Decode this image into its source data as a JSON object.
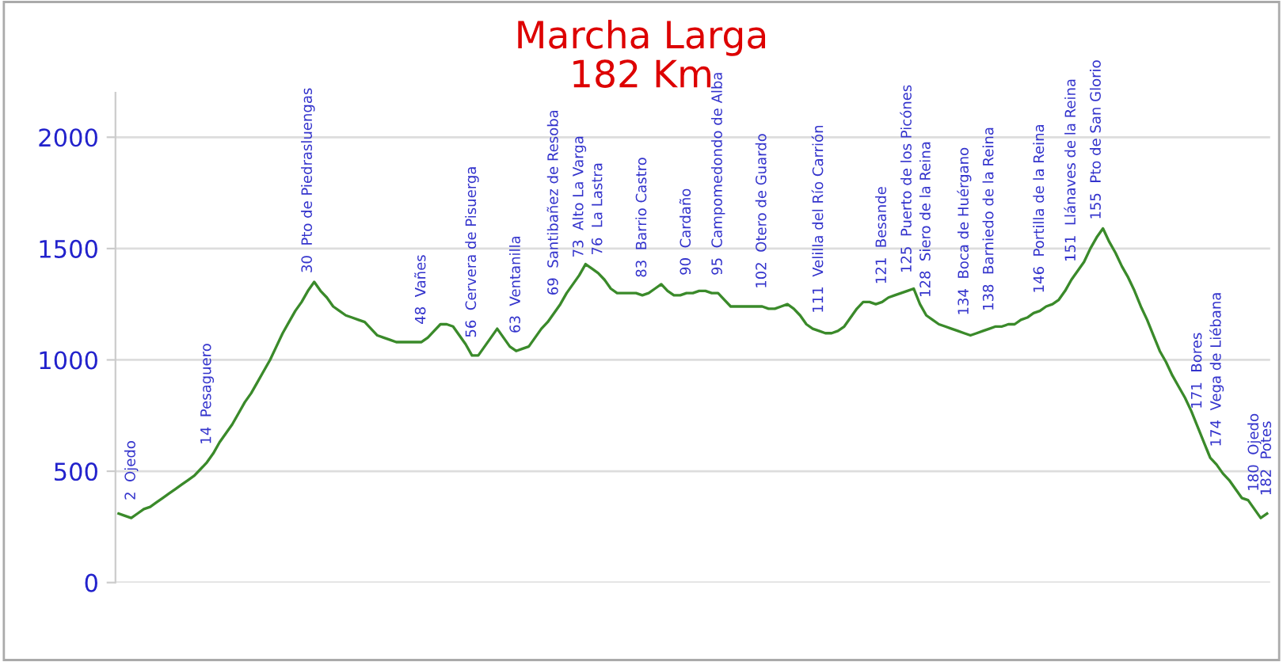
{
  "chart_data": {
    "type": "line",
    "title": "Marcha Larga\n182 Km",
    "color": "#3a8a2a",
    "categories": [
      null,
      null,
      "2  Ojedo",
      null,
      null,
      null,
      null,
      null,
      null,
      null,
      null,
      null,
      null,
      null,
      "14  Pesaguero",
      null,
      null,
      null,
      null,
      null,
      null,
      null,
      null,
      null,
      null,
      null,
      null,
      null,
      null,
      null,
      "30  Pto de Piedrasluengas",
      null,
      null,
      null,
      null,
      null,
      null,
      null,
      null,
      null,
      null,
      null,
      null,
      null,
      null,
      null,
      null,
      null,
      "48  Vañes",
      null,
      null,
      null,
      null,
      null,
      null,
      null,
      "56  Cervera de Pisuerga",
      null,
      null,
      null,
      null,
      null,
      null,
      "63  Ventanilla",
      null,
      null,
      null,
      null,
      null,
      "69  Santibañez de Resoba",
      null,
      null,
      null,
      "73  Alto La Varga",
      null,
      null,
      "76  La Lastra",
      null,
      null,
      null,
      null,
      null,
      null,
      "83  Barrio Castro",
      null,
      null,
      null,
      null,
      null,
      null,
      "90  Cardaño",
      null,
      null,
      null,
      null,
      "95  Campomedondo de Alba",
      null,
      null,
      null,
      null,
      null,
      null,
      "102  Otero de Guardo",
      null,
      null,
      null,
      null,
      null,
      null,
      null,
      null,
      "111  Velilla del Río Carrión",
      null,
      null,
      null,
      null,
      null,
      null,
      null,
      null,
      null,
      "121  Besande",
      null,
      null,
      null,
      "125  Puerto de los Picónes",
      null,
      null,
      "128  Siero de la Reina",
      null,
      null,
      null,
      null,
      null,
      "134  Boca de Huérgano",
      null,
      null,
      null,
      "138  Barniedo de la Reina",
      null,
      null,
      null,
      null,
      null,
      null,
      null,
      "146  Portilla de la Reina",
      null,
      null,
      null,
      null,
      "151  Llánaves de la Reina",
      null,
      null,
      null,
      "155  Pto de San Glorio",
      null,
      null,
      null,
      null,
      null,
      null,
      null,
      null,
      null,
      null,
      null,
      null,
      null,
      null,
      null,
      "171  Bores",
      null,
      null,
      "174  Vega de Liébana",
      null,
      null,
      null,
      null,
      null,
      "180  Ojedo",
      null,
      "182  Potes"
    ],
    "values": [
      310,
      300,
      290,
      310,
      330,
      340,
      360,
      380,
      400,
      420,
      440,
      460,
      480,
      510,
      540,
      580,
      630,
      670,
      710,
      760,
      810,
      850,
      900,
      950,
      1000,
      1060,
      1120,
      1170,
      1220,
      1260,
      1310,
      1350,
      1310,
      1280,
      1240,
      1220,
      1200,
      1190,
      1180,
      1170,
      1140,
      1110,
      1100,
      1090,
      1080,
      1080,
      1080,
      1080,
      1080,
      1100,
      1130,
      1160,
      1160,
      1150,
      1110,
      1070,
      1020,
      1020,
      1060,
      1100,
      1140,
      1100,
      1060,
      1040,
      1050,
      1060,
      1100,
      1140,
      1170,
      1210,
      1250,
      1300,
      1340,
      1380,
      1430,
      1410,
      1390,
      1360,
      1320,
      1300,
      1300,
      1300,
      1300,
      1290,
      1300,
      1320,
      1340,
      1310,
      1290,
      1290,
      1300,
      1300,
      1310,
      1310,
      1300,
      1300,
      1270,
      1240,
      1240,
      1240,
      1240,
      1240,
      1240,
      1230,
      1230,
      1240,
      1250,
      1230,
      1200,
      1160,
      1140,
      1130,
      1120,
      1120,
      1130,
      1150,
      1190,
      1230,
      1260,
      1260,
      1250,
      1260,
      1280,
      1290,
      1300,
      1310,
      1320,
      1250,
      1200,
      1180,
      1160,
      1150,
      1140,
      1130,
      1120,
      1110,
      1120,
      1130,
      1140,
      1150,
      1150,
      1160,
      1160,
      1180,
      1190,
      1210,
      1220,
      1240,
      1250,
      1270,
      1310,
      1360,
      1400,
      1440,
      1500,
      1550,
      1590,
      1530,
      1480,
      1420,
      1370,
      1310,
      1240,
      1180,
      1110,
      1040,
      990,
      930,
      880,
      830,
      770,
      700,
      630,
      560,
      530,
      490,
      460,
      420,
      380,
      370,
      330,
      290,
      310
    ],
    "ylim": [
      0,
      2200
    ],
    "yticks": [
      0,
      500,
      1000,
      1500,
      2000
    ],
    "grid": "y",
    "marker": "none",
    "line_style": "solid"
  }
}
